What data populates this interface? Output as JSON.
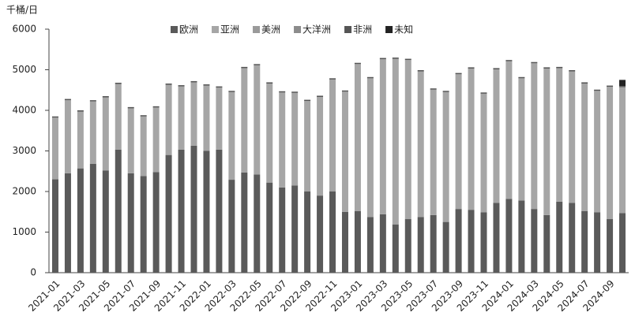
{
  "chart_data": {
    "type": "stacked_bar",
    "y_label": "千桶/日",
    "categories": [
      "2021-01",
      null,
      "2021-03",
      null,
      "2021-05",
      null,
      "2021-07",
      null,
      "2021-09",
      null,
      "2021-11",
      null,
      "2022-01",
      null,
      "2022-03",
      null,
      "2022-05",
      null,
      "2022-07",
      null,
      "2022-09",
      null,
      "2022-11",
      null,
      "2023-01",
      null,
      "2023-03",
      null,
      "2023-05",
      null,
      "2023-07",
      null,
      "2023-09",
      null,
      "2023-11",
      null,
      "2024-01",
      null,
      "2024-03",
      null,
      "2024-05",
      null,
      "2024-07",
      null,
      "2024-09",
      null
    ],
    "series": [
      {
        "name": "欧洲",
        "color": "#5a5a5a",
        "values": [
          2300,
          2450,
          2570,
          2680,
          2520,
          3030,
          2450,
          2380,
          2480,
          2900,
          3030,
          3130,
          3000,
          3030,
          2290,
          2470,
          2420,
          2220,
          2100,
          2150,
          2000,
          1900,
          2000,
          1500,
          1520,
          1370,
          1440,
          1190,
          1320,
          1370,
          1420,
          1250,
          1570,
          1550,
          1490,
          1720,
          1820,
          1780,
          1570,
          1420,
          1750,
          1720,
          1520,
          1490,
          1320,
          1470
        ]
      },
      {
        "name": "亚洲",
        "color": "#a6a6a6",
        "values": [
          1520,
          1800,
          1400,
          1540,
          1800,
          1620,
          1600,
          1470,
          1590,
          1730,
          1560,
          1560,
          1610,
          1530,
          2160,
          2570,
          2690,
          2440,
          2340,
          2280,
          2230,
          2430,
          2760,
          2960,
          3620,
          3420,
          3820,
          4080,
          3920,
          3590,
          3090,
          3200,
          3320,
          3480,
          2920,
          3290,
          3390,
          3010,
          3590,
          3610,
          3290,
          3240,
          3140,
          2990,
          3260,
          3100
        ]
      },
      {
        "name": "美洲",
        "color": "#9a9a9a",
        "values": [
          0,
          0,
          0,
          0,
          0,
          0,
          0,
          0,
          0,
          0,
          0,
          0,
          0,
          0,
          0,
          0,
          0,
          0,
          0,
          0,
          0,
          0,
          0,
          0,
          0,
          0,
          0,
          0,
          0,
          0,
          0,
          0,
          0,
          0,
          0,
          0,
          0,
          0,
          0,
          0,
          0,
          0,
          0,
          0,
          0,
          0
        ]
      },
      {
        "name": "大洋洲",
        "color": "#8c8c8c",
        "values": [
          0,
          0,
          0,
          0,
          0,
          0,
          0,
          0,
          0,
          0,
          0,
          0,
          0,
          0,
          0,
          0,
          0,
          0,
          0,
          0,
          0,
          0,
          0,
          0,
          0,
          0,
          0,
          0,
          0,
          0,
          0,
          0,
          0,
          0,
          0,
          0,
          0,
          0,
          0,
          0,
          0,
          0,
          0,
          0,
          0,
          0
        ]
      },
      {
        "name": "非洲",
        "color": "#555555",
        "values": [
          30,
          30,
          30,
          30,
          30,
          30,
          30,
          30,
          30,
          30,
          30,
          30,
          30,
          30,
          30,
          30,
          30,
          30,
          30,
          30,
          30,
          30,
          30,
          30,
          30,
          30,
          30,
          30,
          30,
          30,
          30,
          30,
          30,
          30,
          30,
          30,
          30,
          30,
          30,
          30,
          30,
          30,
          30,
          30,
          30,
          30
        ]
      },
      {
        "name": "未知",
        "color": "#222222",
        "values": [
          0,
          0,
          0,
          0,
          0,
          0,
          0,
          0,
          0,
          0,
          0,
          0,
          0,
          0,
          0,
          0,
          0,
          0,
          0,
          0,
          0,
          0,
          0,
          0,
          0,
          0,
          0,
          0,
          0,
          0,
          0,
          0,
          0,
          0,
          0,
          0,
          0,
          0,
          0,
          0,
          0,
          0,
          0,
          0,
          0,
          150
        ]
      }
    ],
    "ylim": [
      0,
      6000
    ],
    "yticks": [
      0,
      1000,
      2000,
      3000,
      4000,
      5000,
      6000
    ],
    "legend": "top"
  }
}
